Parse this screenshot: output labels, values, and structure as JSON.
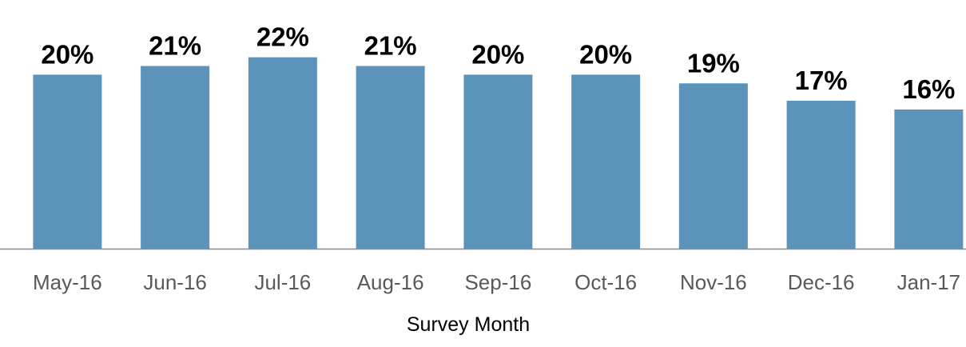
{
  "chart_data": {
    "type": "bar",
    "x_label": "Survey Month",
    "categories": [
      "May-16",
      "Jun-16",
      "Jul-16",
      "Aug-16",
      "Sep-16",
      "Oct-16",
      "Nov-16",
      "Dec-16",
      "Jan-17"
    ],
    "values": [
      20,
      21,
      22,
      21,
      20,
      20,
      19,
      17,
      16
    ],
    "value_labels": [
      "20%",
      "21%",
      "22%",
      "21%",
      "20%",
      "20%",
      "19%",
      "17%",
      "16%"
    ],
    "color": "#5b93bb",
    "ylim": [
      0,
      25
    ]
  }
}
